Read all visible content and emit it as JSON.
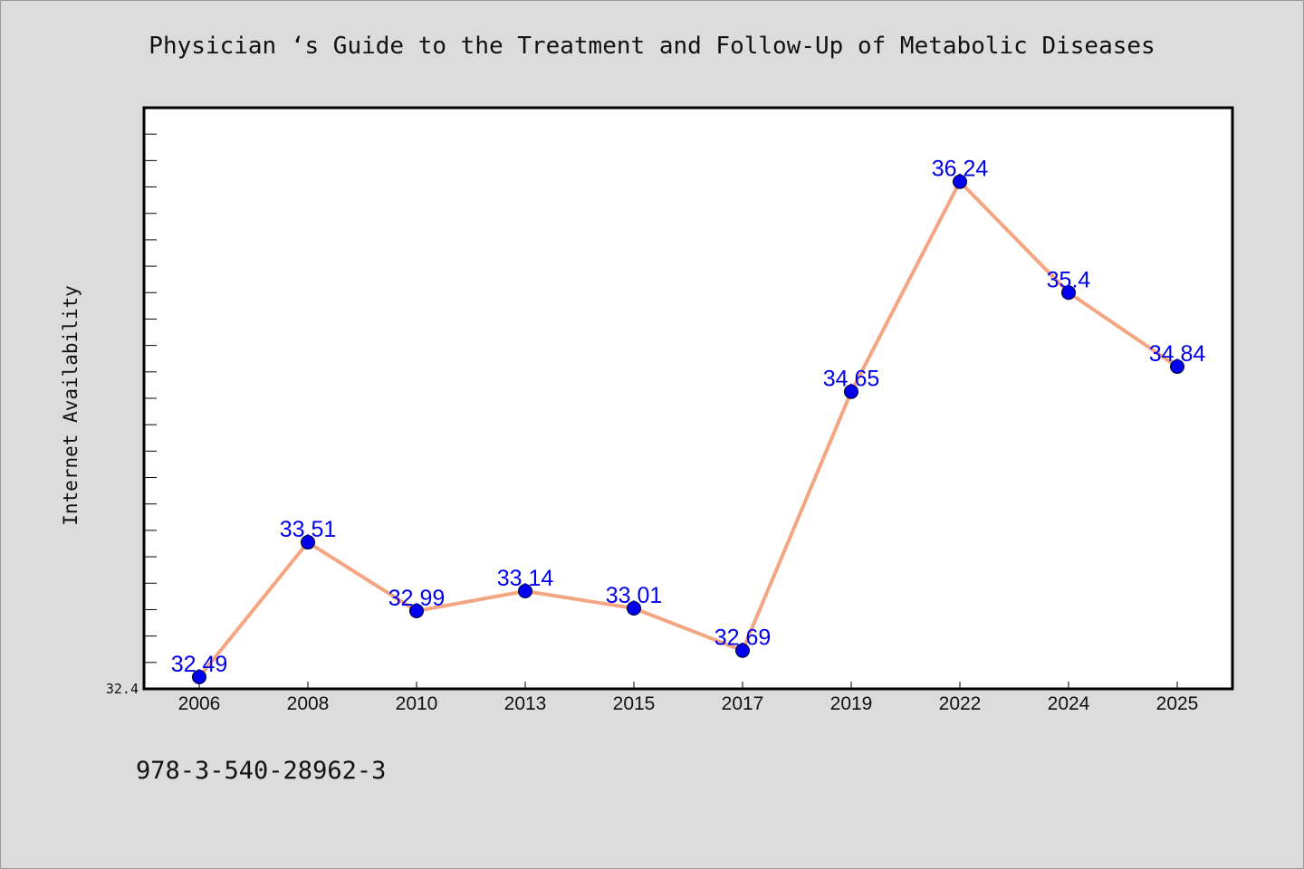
{
  "chart_data": {
    "type": "line",
    "title": "Physician ‘s Guide to the Treatment and Follow-Up of Metabolic Diseases",
    "xlabel": "",
    "ylabel": "Internet Availability",
    "categories": [
      "2006",
      "2008",
      "2010",
      "2013",
      "2015",
      "2017",
      "2019",
      "2022",
      "2024",
      "2025"
    ],
    "series": [
      {
        "values": [
          32.49,
          33.51,
          32.99,
          33.14,
          33.01,
          32.69,
          34.65,
          36.24,
          35.4,
          34.84
        ],
        "data_labels": [
          "32.49",
          "33.51",
          "32.99",
          "33.14",
          "33.01",
          "32.69",
          "34.65",
          "36.24",
          "35.4",
          "34.84"
        ]
      }
    ],
    "ylim": [
      32.4,
      36.8
    ],
    "ytick_labels": [
      "32.4"
    ],
    "grid": false,
    "colors": {
      "line": "#f4a582",
      "marker": "#0000ee",
      "data_label": "#0000ee",
      "plot_background": "#ffffff",
      "page_background": "#dcdcdc"
    }
  },
  "footer_text": "978-3-540-28962-3"
}
